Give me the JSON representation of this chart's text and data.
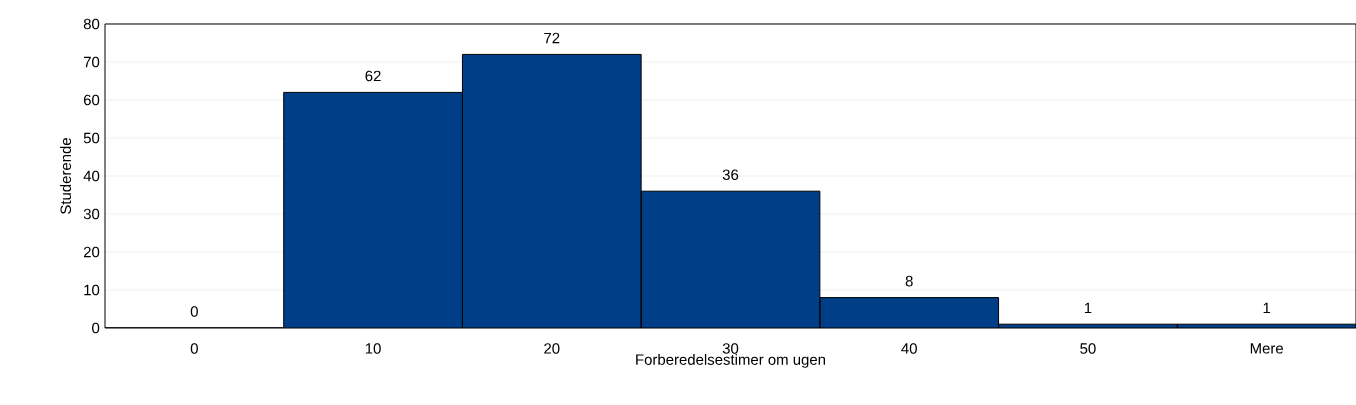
{
  "chart_data": {
    "type": "bar",
    "xlabel": "Forberedelsestimer om ugen",
    "ylabel": "Studerende",
    "categories": [
      "0",
      "10",
      "20",
      "30",
      "40",
      "50",
      "Mere"
    ],
    "values": [
      0,
      62,
      72,
      36,
      8,
      1,
      1
    ],
    "color": "#003f87",
    "ylim": [
      0,
      80
    ],
    "yticks": [
      0,
      10,
      20,
      30,
      40,
      50,
      60,
      70,
      80
    ],
    "grid": "y",
    "data_labels": true
  }
}
